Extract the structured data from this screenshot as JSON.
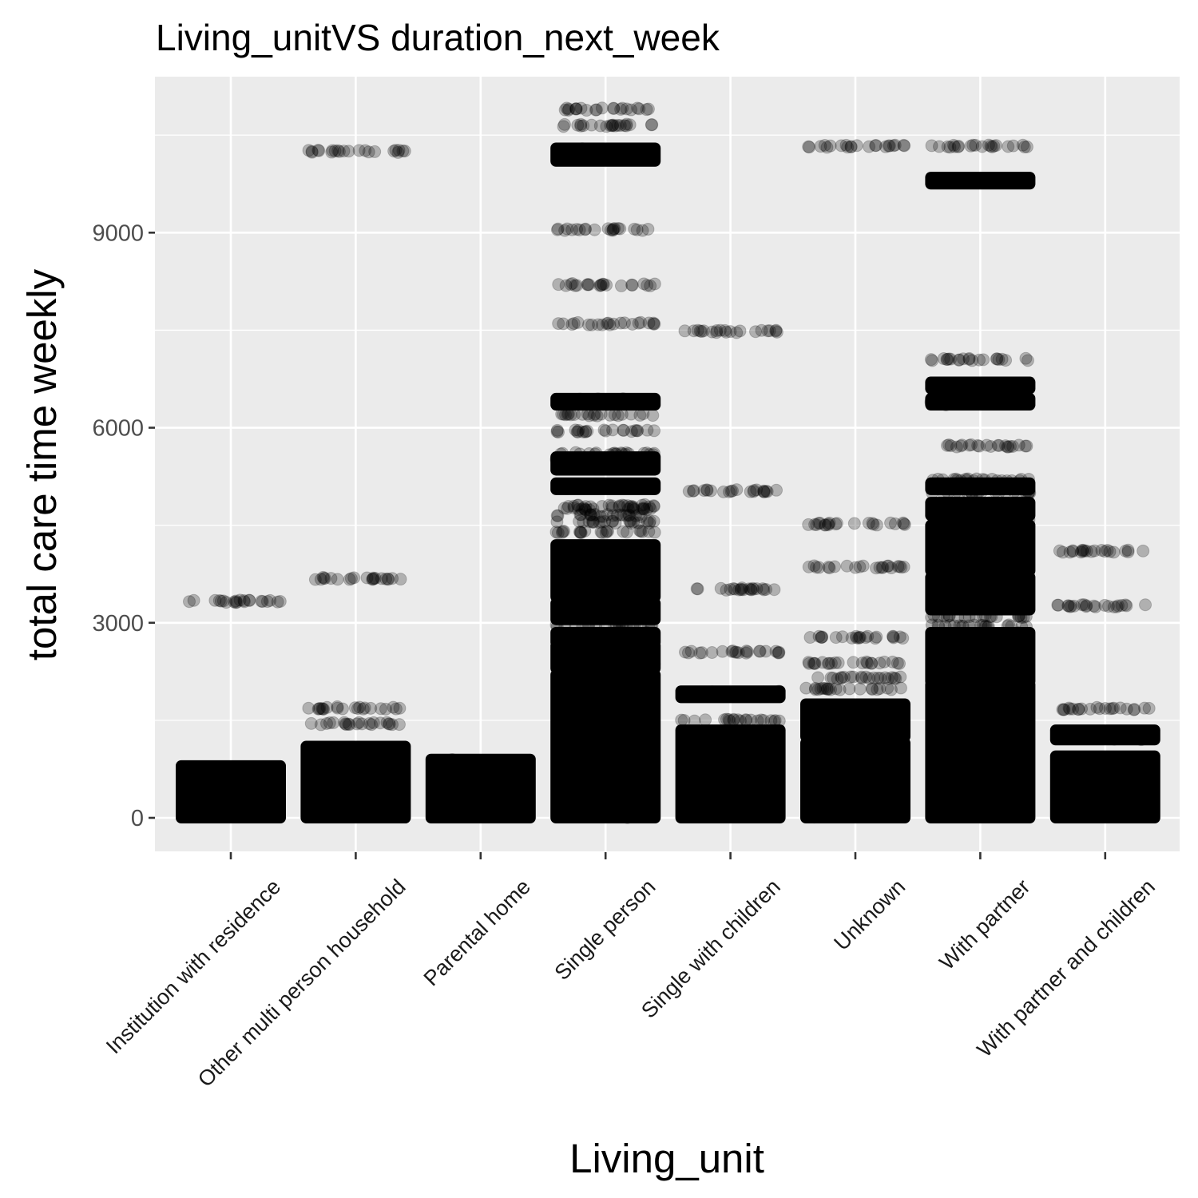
{
  "chart_data": {
    "type": "scatter",
    "title": "Living_unitVS duration_next_week",
    "xlabel": "Living_unit",
    "ylabel": "total care time weekly",
    "categories": [
      "Institution with residence",
      "Other multi person household",
      "Parental home",
      "Single person",
      "Single with children",
      "Unknown",
      "With partner",
      "With partner and children"
    ],
    "y_ticks": [
      0,
      3000,
      6000,
      9000
    ],
    "ylim": [
      -520,
      11350
    ],
    "grid": true,
    "legend": "none",
    "point_color": "#000000",
    "point_alpha": 0.25,
    "panel_color": "#ebebeb",
    "jitter": "horizontal",
    "series": [
      {
        "category": "Institution with residence",
        "dense_ranges": [
          [
            0,
            800
          ]
        ],
        "levels": [
          3330
        ]
      },
      {
        "category": "Other multi person household",
        "dense_ranges": [
          [
            0,
            1100
          ]
        ],
        "levels": [
          1450,
          1690,
          3680,
          10250
        ]
      },
      {
        "category": "Parental home",
        "dense_ranges": [
          [
            0,
            900
          ]
        ],
        "levels": []
      },
      {
        "category": "Single person",
        "dense_ranges": [
          [
            0,
            2200
          ],
          [
            2300,
            2650
          ],
          [
            2700,
            2850
          ],
          [
            3050,
            3300
          ],
          [
            3400,
            4200
          ],
          [
            5050,
            5150
          ],
          [
            5350,
            5550
          ],
          [
            6350,
            6450
          ],
          [
            10100,
            10300
          ]
        ],
        "levels": [
          2950,
          4400,
          4550,
          4650,
          4750,
          4800,
          5600,
          5950,
          6200,
          7600,
          8200,
          9050,
          10650,
          10900
        ]
      },
      {
        "category": "Single with children",
        "dense_ranges": [
          [
            0,
            1350
          ],
          [
            1850,
            1950
          ]
        ],
        "levels": [
          1500,
          2550,
          3520,
          5030,
          7480
        ]
      },
      {
        "category": "Unknown",
        "dense_ranges": [
          [
            0,
            1150
          ],
          [
            1250,
            1750
          ]
        ],
        "levels": [
          1980,
          2150,
          2380,
          2780,
          3860,
          4520,
          10330
        ]
      },
      {
        "category": "With partner",
        "dense_ranges": [
          [
            0,
            2050
          ],
          [
            2100,
            2850
          ],
          [
            3200,
            3700
          ],
          [
            3800,
            4500
          ],
          [
            4650,
            4850
          ],
          [
            5050,
            5150
          ],
          [
            6350,
            6450
          ],
          [
            6600,
            6700
          ],
          [
            9750,
            9850
          ]
        ],
        "levels": [
          2950,
          3100,
          4600,
          5000,
          5200,
          5720,
          7050,
          10330
        ]
      },
      {
        "category": "With partner and children",
        "dense_ranges": [
          [
            0,
            950
          ],
          [
            1200,
            1350
          ]
        ],
        "levels": [
          1680,
          3260,
          4100
        ]
      }
    ]
  }
}
